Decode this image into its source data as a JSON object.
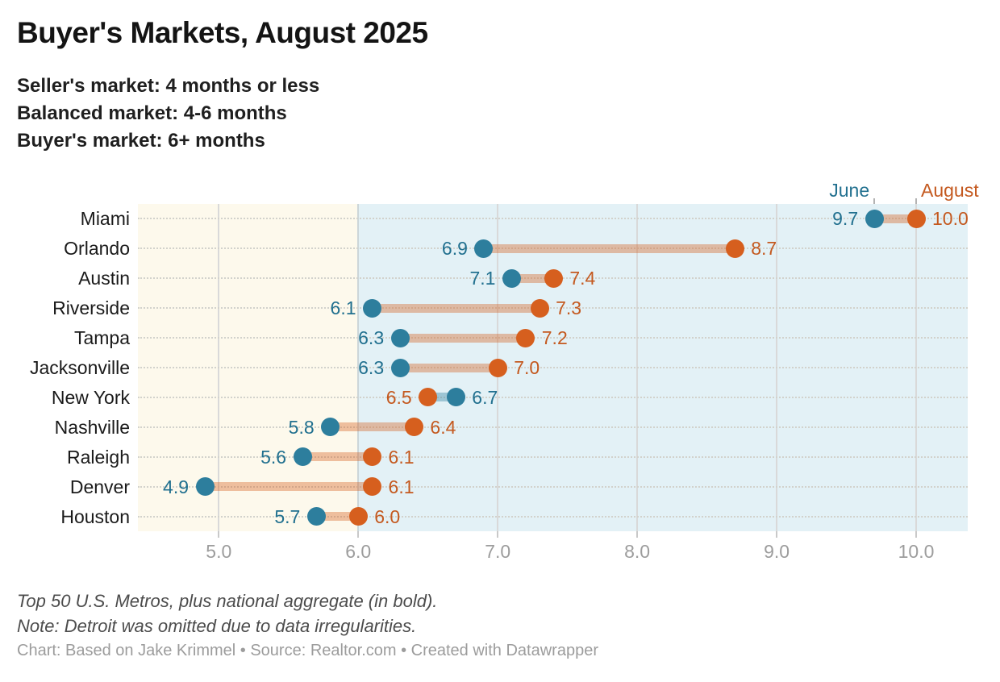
{
  "header": {
    "title": "Buyer's Markets, August 2025",
    "subtitle_lines": [
      "Seller's market: 4 months or less",
      "Balanced market: 4-6 months",
      "Buyer's market: 6+ months"
    ]
  },
  "legend": {
    "items": [
      {
        "label": "June",
        "color": "#2d7e9d"
      },
      {
        "label": "August",
        "color": "#d65f1e"
      }
    ]
  },
  "chart_data": {
    "type": "scatter",
    "subtype": "dumbbell-range",
    "title": "Buyer's Markets, August 2025",
    "xlabel": "",
    "ylabel": "",
    "categories": [
      "Miami",
      "Orlando",
      "Austin",
      "Riverside",
      "Tampa",
      "Jacksonville",
      "New York",
      "Nashville",
      "Raleigh",
      "Denver",
      "Houston"
    ],
    "series": [
      {
        "name": "June",
        "values": [
          9.7,
          6.9,
          7.1,
          6.1,
          6.3,
          6.3,
          6.7,
          5.8,
          5.6,
          4.9,
          5.7
        ]
      },
      {
        "name": "August",
        "values": [
          10.0,
          8.7,
          7.4,
          7.3,
          7.2,
          7.0,
          6.5,
          6.4,
          6.1,
          6.1,
          6.0
        ]
      }
    ],
    "xlim": [
      4.42,
      10.37
    ],
    "x_ticks": [
      5.0,
      6.0,
      7.0,
      8.0,
      9.0,
      10.0
    ],
    "tick_decimals": 1,
    "grid": "vertical gridlines + dotted horizontal row lines",
    "legend_position": "top-right, above first row with tick pointers",
    "zones": [
      {
        "from": 4.42,
        "to": 6.0,
        "color": "#fdf9ec",
        "meaning": "under 6 months"
      },
      {
        "from": 6.0,
        "to": 10.37,
        "color": "#e3f1f6",
        "meaning": "buyer's market 6+ months"
      }
    ]
  },
  "colors": {
    "june_dot": "#2d7e9d",
    "august_dot": "#d65f1e",
    "june_text": "#21708f",
    "august_text": "#c4591f",
    "connector_increase": "#d65f1e61",
    "connector_decrease": "#2d7e9d61",
    "gridline": "#d9d9d9",
    "gridline_six": "#ccd6d9",
    "row_dotted": "#d2d2cc",
    "axis_text": "#9d9d9d",
    "bg_left": "#fdf9ec",
    "bg_right": "#e3f1f6"
  },
  "footer": {
    "note_lines": [
      "Top 50 U.S. Metros, plus national aggregate (in bold).",
      "Note: Detroit was omitted due to data irregularities."
    ],
    "credit": "Chart: Based on Jake Krimmel • Source: Realtor.com • Created with Datawrapper"
  }
}
